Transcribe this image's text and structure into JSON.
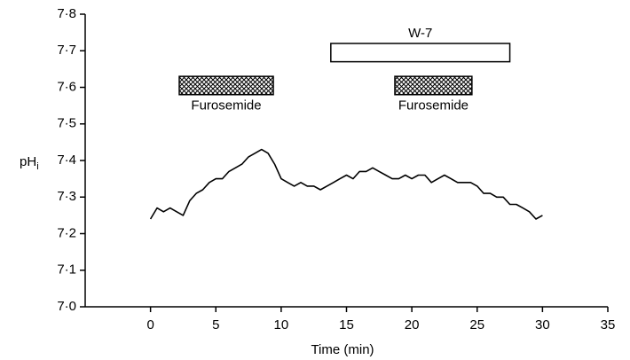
{
  "chart_data": {
    "type": "line",
    "xlabel": "Time (min)",
    "ylabel": {
      "main": "pH",
      "sub": "i"
    },
    "xlim": [
      -5,
      35
    ],
    "xticks": [
      0,
      5,
      10,
      15,
      20,
      25,
      30,
      35
    ],
    "ylim": [
      7.0,
      7.8
    ],
    "yticks": [
      {
        "value": 7.0,
        "label": "7·0"
      },
      {
        "value": 7.1,
        "label": "7·1"
      },
      {
        "value": 7.2,
        "label": "7·2"
      },
      {
        "value": 7.3,
        "label": "7·3"
      },
      {
        "value": 7.4,
        "label": "7·4"
      },
      {
        "value": 7.5,
        "label": "7·5"
      },
      {
        "value": 7.6,
        "label": "7·6"
      },
      {
        "value": 7.7,
        "label": "7·7"
      },
      {
        "value": 7.8,
        "label": "7·8"
      }
    ],
    "color": "#000000",
    "x": [
      0,
      0.5,
      1,
      1.5,
      2,
      2.5,
      3,
      3.5,
      4,
      4.5,
      5,
      5.5,
      6,
      6.5,
      7,
      7.5,
      8,
      8.5,
      9,
      9.5,
      10,
      10.5,
      11,
      11.5,
      12,
      12.5,
      13,
      13.5,
      14,
      14.5,
      15,
      15.5,
      16,
      16.5,
      17,
      17.5,
      18,
      18.5,
      19,
      19.5,
      20,
      20.5,
      21,
      21.5,
      22,
      22.5,
      23,
      23.5,
      24,
      24.5,
      25,
      25.5,
      26,
      26.5,
      27,
      27.5,
      28,
      28.5,
      29,
      29.5,
      30
    ],
    "values": [
      7.24,
      7.27,
      7.26,
      7.27,
      7.26,
      7.25,
      7.29,
      7.31,
      7.32,
      7.34,
      7.35,
      7.35,
      7.37,
      7.38,
      7.39,
      7.41,
      7.42,
      7.43,
      7.42,
      7.39,
      7.35,
      7.34,
      7.33,
      7.34,
      7.33,
      7.33,
      7.32,
      7.33,
      7.34,
      7.35,
      7.36,
      7.35,
      7.37,
      7.37,
      7.38,
      7.37,
      7.36,
      7.35,
      7.35,
      7.36,
      7.35,
      7.36,
      7.36,
      7.34,
      7.35,
      7.36,
      7.35,
      7.34,
      7.34,
      7.34,
      7.33,
      7.31,
      7.31,
      7.3,
      7.3,
      7.28,
      7.28,
      7.27,
      7.26,
      7.24,
      7.25
    ],
    "treatments": [
      {
        "label": "Furosemide",
        "start": 2.2,
        "end": 9.4,
        "ylow": 7.58,
        "yhigh": 7.63,
        "fill": "hatch",
        "label_pos": "below"
      },
      {
        "label": "W-7",
        "start": 13.8,
        "end": 27.5,
        "ylow": 7.67,
        "yhigh": 7.72,
        "fill": "open",
        "label_pos": "above"
      },
      {
        "label": "Furosemide",
        "start": 18.7,
        "end": 24.6,
        "ylow": 7.58,
        "yhigh": 7.63,
        "fill": "hatch",
        "label_pos": "below"
      }
    ]
  }
}
